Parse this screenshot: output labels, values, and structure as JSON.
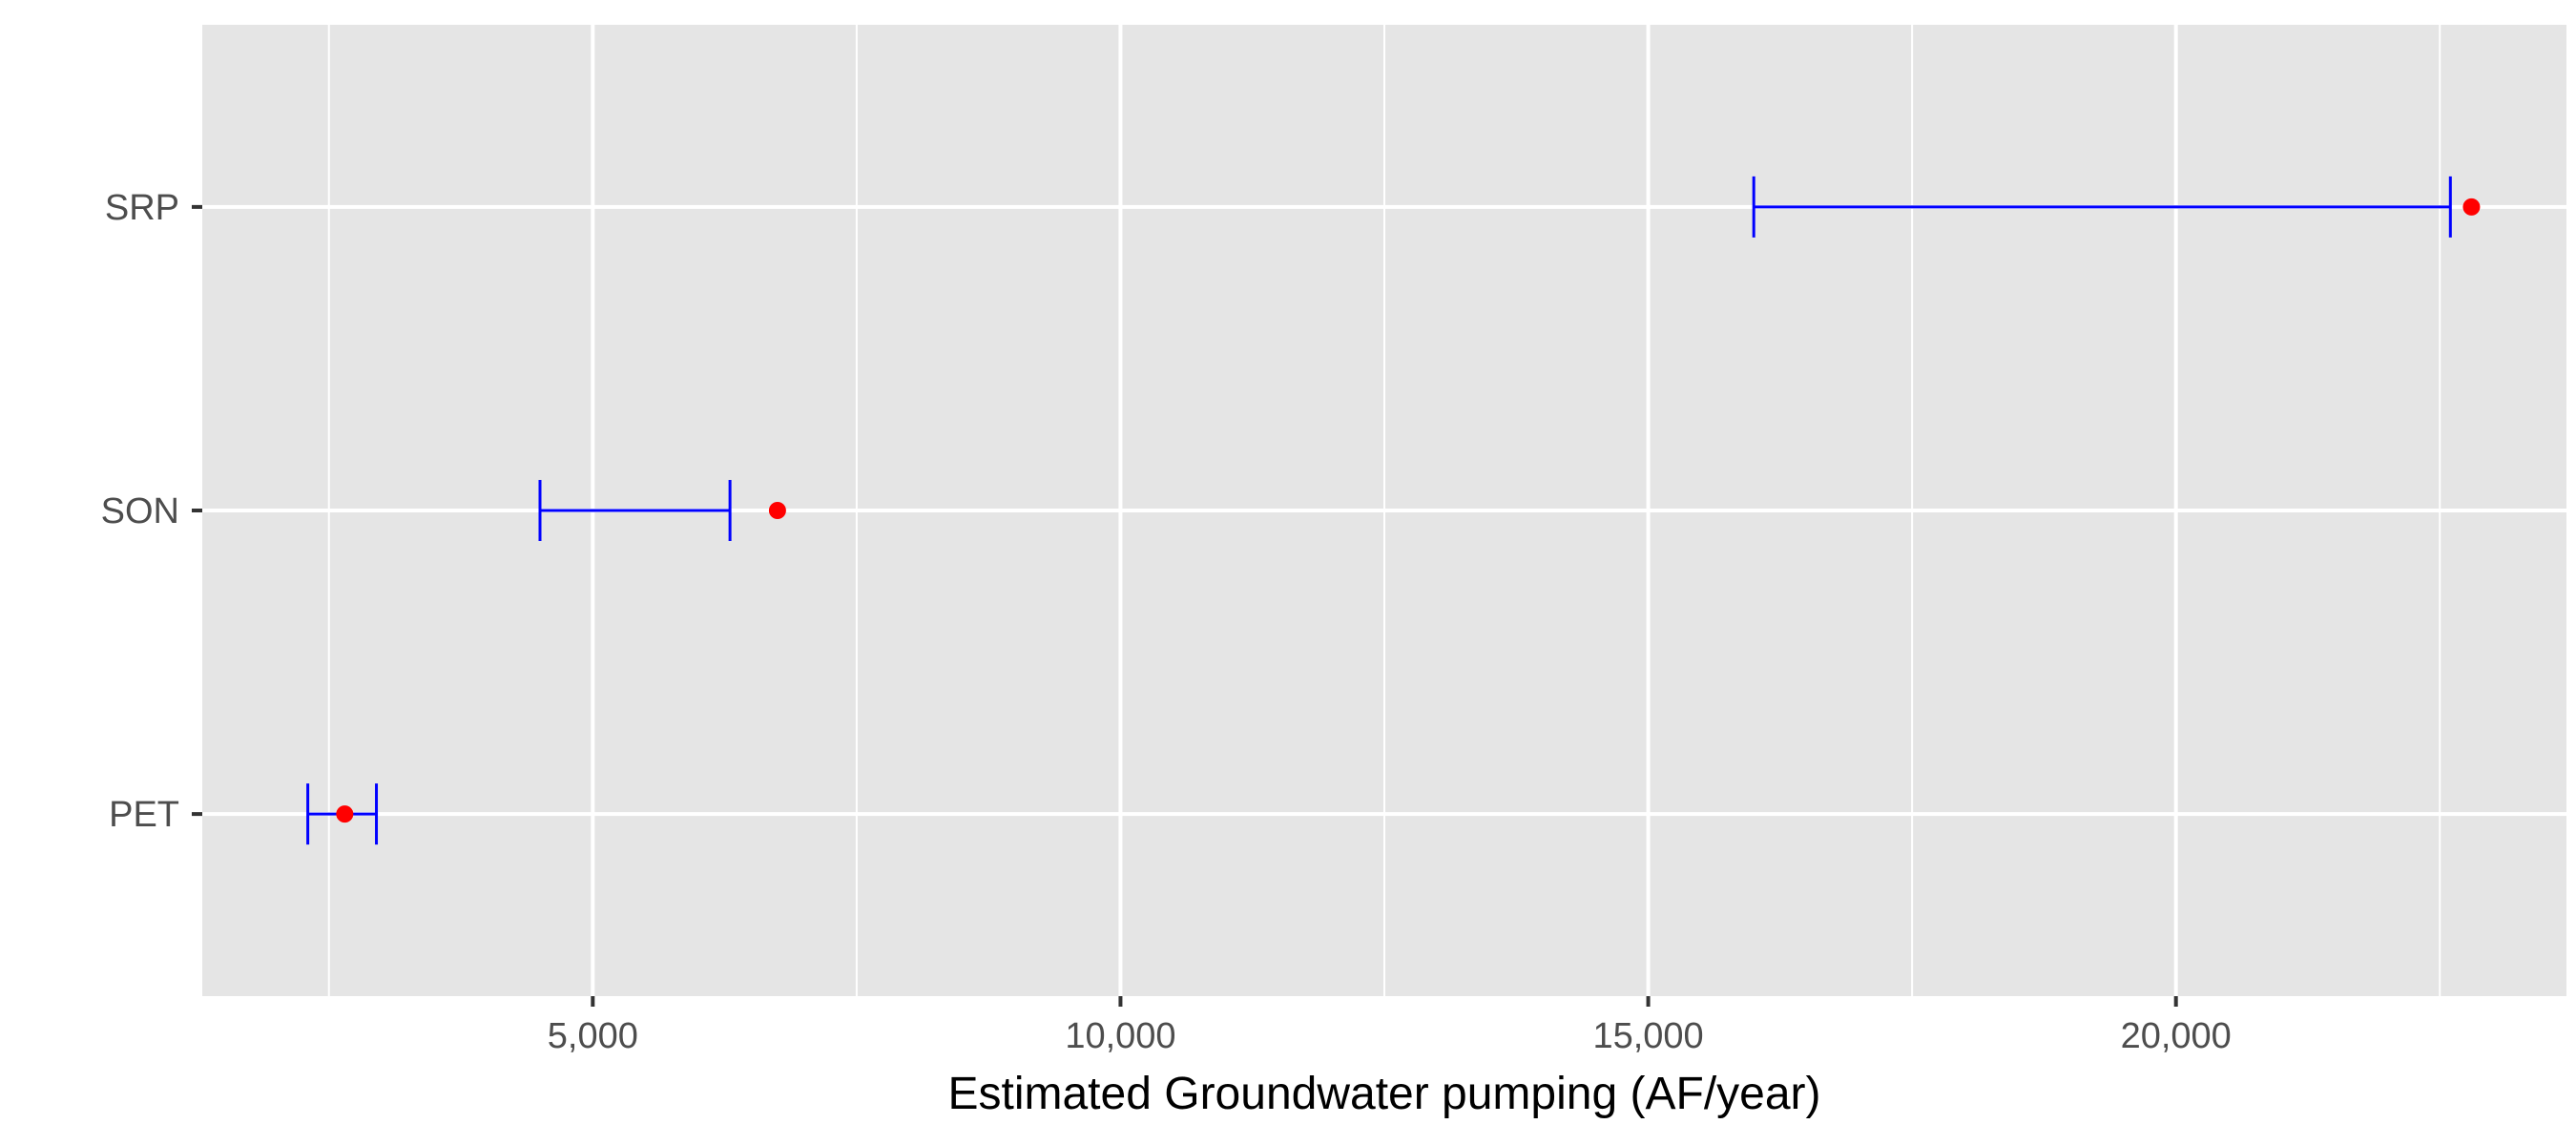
{
  "chart_data": {
    "type": "scatter",
    "orientation": "horizontal",
    "title": "",
    "xlabel": "Estimated Groundwater pumping (AF/year)",
    "ylabel": "",
    "xlim": [
      1300,
      23700
    ],
    "x_ticks": [
      5000,
      10000,
      15000,
      20000
    ],
    "x_tick_labels": [
      "5,000",
      "10,000",
      "15,000",
      "20,000"
    ],
    "x_minor_ticks": [
      2500,
      7500,
      12500,
      17500,
      22500
    ],
    "categories": [
      "PET",
      "SON",
      "SRP"
    ],
    "points": [
      2650,
      6750,
      22800
    ],
    "intervals": [
      {
        "low": 2300,
        "high": 2950
      },
      {
        "low": 4500,
        "high": 6300
      },
      {
        "low": 16000,
        "high": 22600
      }
    ],
    "grid": true,
    "legend": "none",
    "colors": {
      "panel_background": "#e5e5e5",
      "grid": "#ffffff",
      "point": "#ff0000",
      "interval": "#0000ff",
      "tick_mark": "#333333"
    }
  }
}
